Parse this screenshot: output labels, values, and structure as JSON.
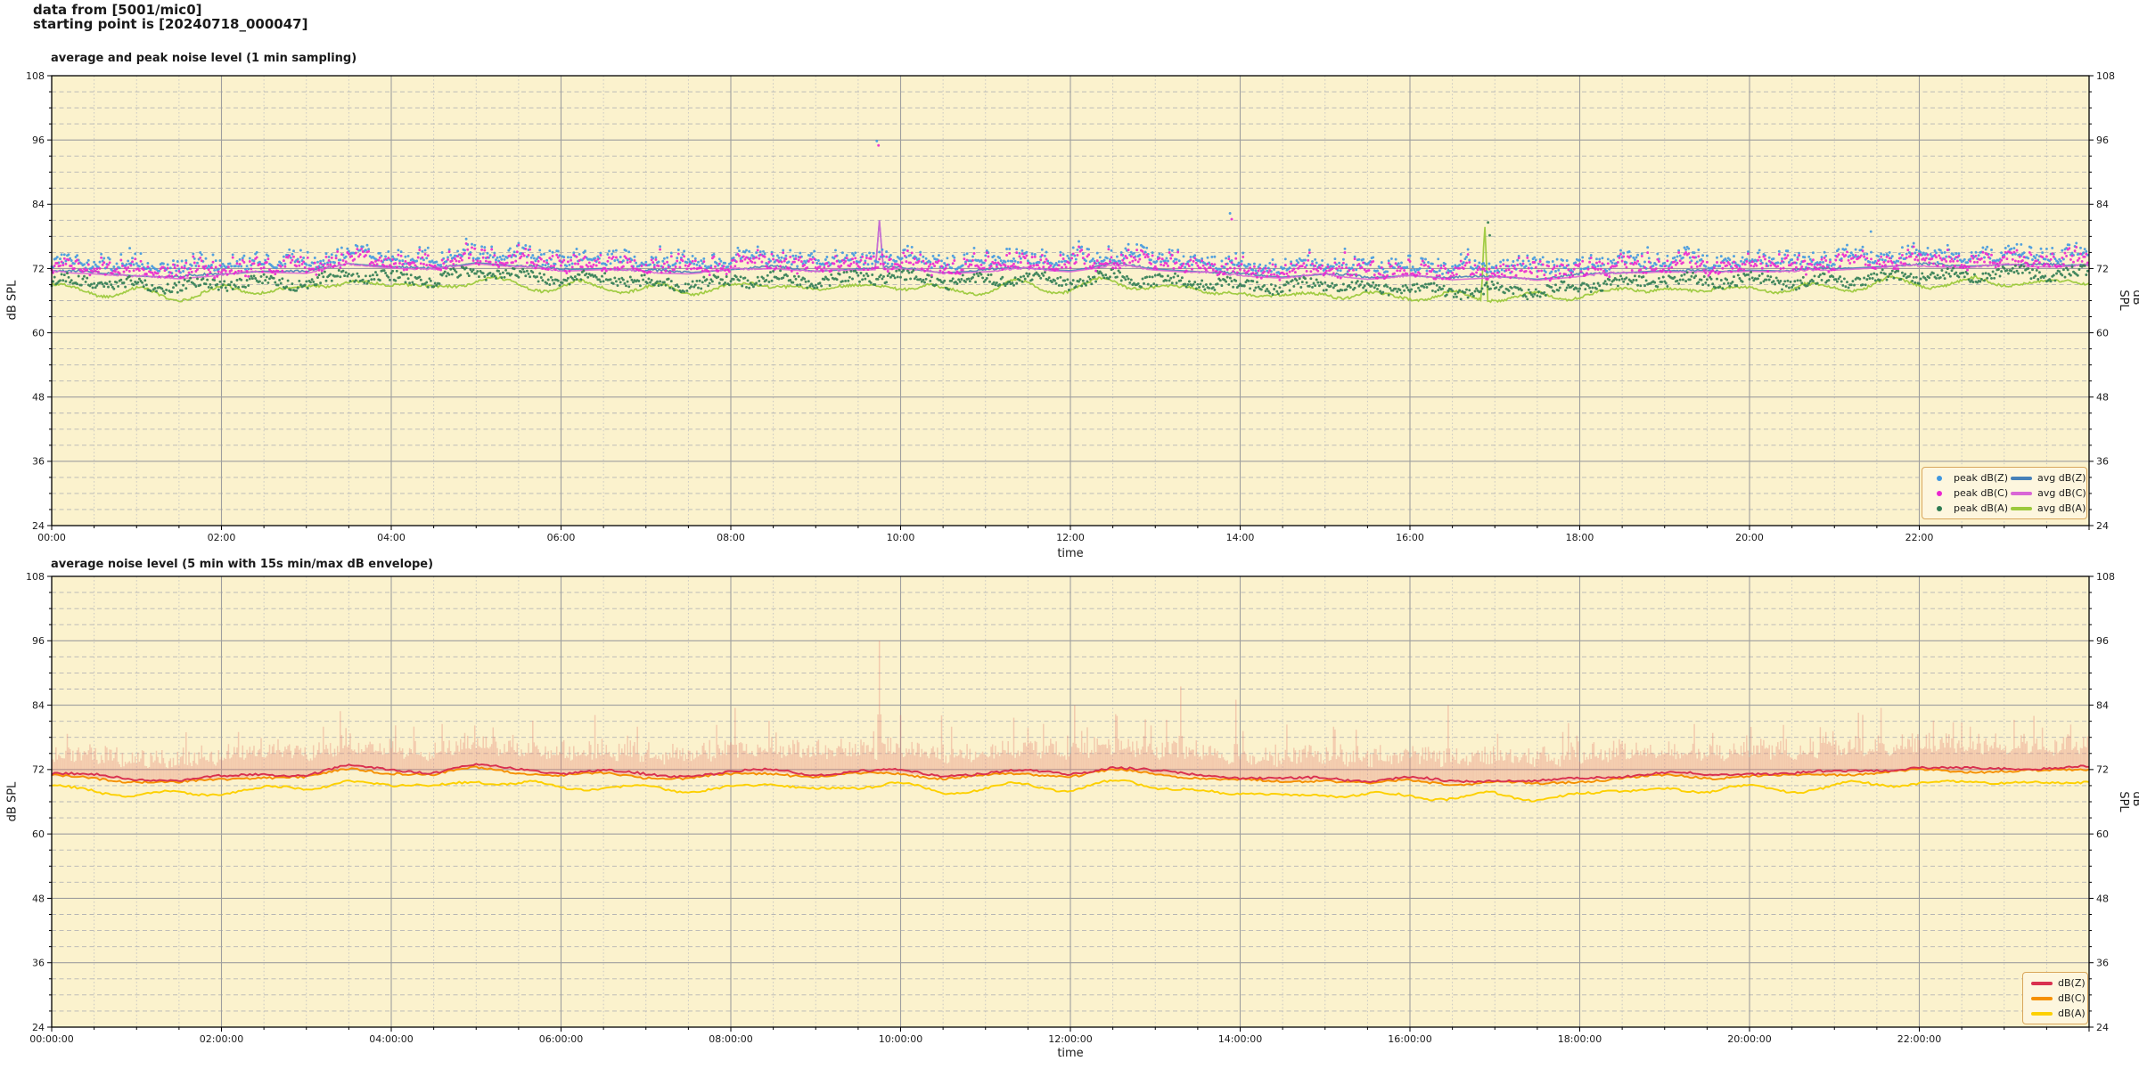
{
  "header": {
    "line1": "data from [5001/mic0]",
    "line2": "starting point is [20240718_000047]"
  },
  "seed": 47,
  "colors": {
    "figure_bg": "#ffffff",
    "plot_bg": "#fbf2cd",
    "grid_major": "#9e9e9e",
    "grid_minor_h": "#b5b5b5",
    "grid_minor_v": "#c2c2c2",
    "axis": "#000000",
    "text": "#1a1a1a",
    "peak_dBZ": "#3f97e0",
    "peak_dBC": "#ea25d0",
    "peak_dBA": "#2e7b52",
    "avg_dBZ": "#4680b8",
    "avg_dBC": "#d966d6",
    "avg_dBA": "#9cc93c",
    "dBZ": "#d9304f",
    "dBC": "#f59000",
    "dBA": "#fdd000",
    "envelope": "#e4796d",
    "legend_bg": "#fdf6de",
    "legend_border": "#d9a75c"
  },
  "chart_data": [
    {
      "type": "scatter",
      "title": "average and peak noise level (1 min sampling)",
      "xlabel": "time",
      "ylabel_left": "dB SPL",
      "ylabel_right": "dB SPL",
      "ylim": [
        24,
        108
      ],
      "xlim_hours": [
        0,
        24
      ],
      "y_ticks": [
        24,
        36,
        48,
        60,
        72,
        84,
        96,
        108
      ],
      "y_minor_step": 3,
      "x_tick_hours": [
        0,
        2,
        4,
        6,
        8,
        10,
        12,
        14,
        16,
        18,
        20,
        22
      ],
      "x_tick_labels": [
        "00:00",
        "02:00",
        "04:00",
        "06:00",
        "08:00",
        "10:00",
        "12:00",
        "14:00",
        "16:00",
        "18:00",
        "20:00",
        "22:00"
      ],
      "x_minor_minutes": 30,
      "grid": true,
      "legend_position": "lower right",
      "legend_columns": 2,
      "legend_entries": [
        {
          "label": "peak dB(Z)",
          "marker": "dot",
          "color_key": "peak_dBZ"
        },
        {
          "label": "peak dB(C)",
          "marker": "dot",
          "color_key": "peak_dBC"
        },
        {
          "label": "peak dB(A)",
          "marker": "dot",
          "color_key": "peak_dBA"
        },
        {
          "label": "avg dB(Z)",
          "marker": "line",
          "color_key": "avg_dBZ"
        },
        {
          "label": "avg dB(C)",
          "marker": "line",
          "color_key": "avg_dBC"
        },
        {
          "label": "avg dB(A)",
          "marker": "line",
          "color_key": "avg_dBA"
        }
      ],
      "sampling_minutes": 1,
      "anchor_step_hours": 0.5,
      "series": [
        {
          "name": "avg dB(Z)",
          "style": "line",
          "color_key": "avg_dBZ",
          "anchors_db": [
            71.5,
            71.2,
            70.6,
            70.3,
            70.9,
            71.5,
            71.3,
            72.9,
            72.3,
            71.8,
            73.1,
            72.4,
            71.7,
            72.0,
            71.4,
            71.2,
            71.8,
            72.2,
            71.5,
            71.9,
            72.1,
            71.2,
            71.6,
            72.0,
            71.6,
            72.7,
            71.9,
            71.4,
            70.8,
            70.4,
            70.9,
            70.2,
            70.7,
            70.1,
            70.5,
            70.0,
            70.7,
            71.2,
            71.6,
            71.3,
            71.7,
            71.5,
            71.9,
            72.3,
            72.6,
            72.4,
            72.7,
            72.5,
            72.7
          ]
        },
        {
          "name": "avg dB(C)",
          "style": "line",
          "color_key": "avg_dBC",
          "anchors_db": [
            71.3,
            71.0,
            70.4,
            70.1,
            70.7,
            71.3,
            71.1,
            72.7,
            72.1,
            71.6,
            72.9,
            72.2,
            71.5,
            71.8,
            71.2,
            71.0,
            71.6,
            72.0,
            71.3,
            71.7,
            71.9,
            71.0,
            71.4,
            71.8,
            71.4,
            72.5,
            71.7,
            71.2,
            70.6,
            70.2,
            70.7,
            70.0,
            70.5,
            69.9,
            70.3,
            69.8,
            70.5,
            71.0,
            71.4,
            71.1,
            71.5,
            71.3,
            71.7,
            72.1,
            72.4,
            72.2,
            72.5,
            72.3,
            72.5
          ]
        },
        {
          "name": "avg dB(A)",
          "style": "line",
          "color_key": "avg_dBA",
          "anchors_db": [
            69.3,
            68.9,
            68.3,
            68.0,
            68.7,
            69.3,
            69.1,
            70.7,
            70.0,
            69.5,
            70.9,
            70.1,
            69.4,
            69.8,
            69.1,
            68.9,
            69.6,
            70.0,
            69.2,
            69.7,
            69.9,
            68.8,
            69.3,
            69.8,
            69.3,
            70.5,
            69.6,
            69.0,
            68.3,
            67.8,
            68.5,
            67.6,
            68.2,
            67.5,
            68.0,
            67.4,
            68.2,
            68.8,
            69.3,
            68.9,
            69.4,
            69.1,
            69.6,
            70.1,
            70.5,
            70.2,
            70.6,
            70.3,
            70.5
          ]
        },
        {
          "name": "peak dB(Z)",
          "style": "scatter",
          "color_key": "peak_dBZ",
          "band_db": [
            70.5,
            77.5
          ]
        },
        {
          "name": "peak dB(C)",
          "style": "scatter",
          "color_key": "peak_dBC",
          "band_db": [
            69.8,
            76.5
          ]
        },
        {
          "name": "peak dB(A)",
          "style": "scatter",
          "color_key": "peak_dBA",
          "band_db": [
            66.5,
            72.5
          ]
        }
      ],
      "events": [
        {
          "kind": "avg_spike",
          "series": [
            "avg dB(Z)",
            "avg dB(C)"
          ],
          "hour": 9.75,
          "peak_db": 81.0,
          "half_width_hours": 0.045
        },
        {
          "kind": "avg_spike",
          "series": [
            "avg dB(A)"
          ],
          "hour": 16.88,
          "peak_db": 81.0,
          "half_width_hours": 0.035
        }
      ],
      "outlier_points": [
        {
          "hour": 9.72,
          "db": 95.8,
          "series": "peak dB(Z)"
        },
        {
          "hour": 9.74,
          "db": 95.0,
          "series": "peak dB(C)"
        },
        {
          "hour": 13.88,
          "db": 82.3,
          "series": "peak dB(Z)"
        },
        {
          "hour": 13.9,
          "db": 81.2,
          "series": "peak dB(C)"
        },
        {
          "hour": 16.92,
          "db": 80.6,
          "series": "peak dB(A)"
        },
        {
          "hour": 16.94,
          "db": 78.2,
          "series": "peak dB(A)"
        },
        {
          "hour": 0.92,
          "db": 75.8,
          "series": "peak dB(Z)"
        },
        {
          "hour": 21.43,
          "db": 78.9,
          "series": "peak dB(Z)"
        },
        {
          "hour": 23.2,
          "db": 76.5,
          "series": "peak dB(Z)"
        }
      ]
    },
    {
      "type": "line",
      "title": "average noise level (5 min with 15s min/max dB envelope)",
      "xlabel": "time",
      "ylabel_left": "dB SPL",
      "ylabel_right": "dB SPL",
      "ylim": [
        24,
        108
      ],
      "xlim_hours": [
        0,
        24
      ],
      "y_ticks": [
        24,
        36,
        48,
        60,
        72,
        84,
        96,
        108
      ],
      "y_minor_step": 3,
      "x_tick_hours": [
        0,
        2,
        4,
        6,
        8,
        10,
        12,
        14,
        16,
        18,
        20,
        22
      ],
      "x_tick_labels": [
        "00:00:00",
        "02:00:00",
        "04:00:00",
        "06:00:00",
        "08:00:00",
        "10:00:00",
        "12:00:00",
        "14:00:00",
        "16:00:00",
        "18:00:00",
        "20:00:00",
        "22:00:00"
      ],
      "x_minor_minutes": 30,
      "grid": true,
      "legend_position": "lower right",
      "legend_columns": 1,
      "legend_entries": [
        {
          "label": "dB(Z)",
          "marker": "line",
          "color_key": "dBZ"
        },
        {
          "label": "dB(C)",
          "marker": "line",
          "color_key": "dBC"
        },
        {
          "label": "dB(A)",
          "marker": "line",
          "color_key": "dBA"
        }
      ],
      "sampling_minutes": 5,
      "anchor_step_hours": 0.5,
      "series": [
        {
          "name": "dB(Z)",
          "style": "line",
          "color_key": "dBZ",
          "anchors_db": [
            71.2,
            70.9,
            70.3,
            70.0,
            70.6,
            71.2,
            71.0,
            72.6,
            72.0,
            71.5,
            72.8,
            72.1,
            71.4,
            71.7,
            71.1,
            70.9,
            71.5,
            71.9,
            71.2,
            71.6,
            71.8,
            70.9,
            71.3,
            71.7,
            71.3,
            72.4,
            71.6,
            71.1,
            70.5,
            70.1,
            70.6,
            69.9,
            70.4,
            69.8,
            70.2,
            69.7,
            70.4,
            70.9,
            71.3,
            71.0,
            71.4,
            71.2,
            71.6,
            72.0,
            72.3,
            72.1,
            72.4,
            72.2,
            72.4
          ]
        },
        {
          "name": "dB(C)",
          "style": "line",
          "color_key": "dBC",
          "anchors_db": [
            70.7,
            70.4,
            69.8,
            69.5,
            70.1,
            70.7,
            70.5,
            72.1,
            71.5,
            71.0,
            72.3,
            71.6,
            70.9,
            71.2,
            70.6,
            70.4,
            71.0,
            71.4,
            70.7,
            71.1,
            71.3,
            70.4,
            70.8,
            71.2,
            70.8,
            71.9,
            71.1,
            70.6,
            70.0,
            69.6,
            70.1,
            69.4,
            69.9,
            69.3,
            69.7,
            69.2,
            69.9,
            70.4,
            70.8,
            70.5,
            70.9,
            70.7,
            71.1,
            71.5,
            71.8,
            71.6,
            71.9,
            71.7,
            71.9
          ]
        },
        {
          "name": "dB(A)",
          "style": "line",
          "color_key": "dBA",
          "anchors_db": [
            69.0,
            68.6,
            68.0,
            67.7,
            68.4,
            69.0,
            68.8,
            70.4,
            69.7,
            69.2,
            70.6,
            69.8,
            69.1,
            69.5,
            68.8,
            68.6,
            69.3,
            69.7,
            68.9,
            69.4,
            69.6,
            68.5,
            69.0,
            69.5,
            69.0,
            70.2,
            69.3,
            68.7,
            68.0,
            67.5,
            68.2,
            67.3,
            67.9,
            67.2,
            67.7,
            67.1,
            67.9,
            68.5,
            69.0,
            68.6,
            69.1,
            68.8,
            69.3,
            69.8,
            70.2,
            69.9,
            70.3,
            70.0,
            70.2
          ]
        },
        {
          "name": "15s max envelope",
          "style": "envelope",
          "color_key": "envelope",
          "anchors_db": [
            75.2,
            74.8,
            74.2,
            74.0,
            74.9,
            75.8,
            75.4,
            77.0,
            76.2,
            75.6,
            77.2,
            76.2,
            75.6,
            75.8,
            75.2,
            75.0,
            75.9,
            76.1,
            75.5,
            75.9,
            76.0,
            75.1,
            75.6,
            76.0,
            75.8,
            76.9,
            76.0,
            75.5,
            74.9,
            74.5,
            75.0,
            74.4,
            74.9,
            74.3,
            74.8,
            74.3,
            75.0,
            75.5,
            75.9,
            75.6,
            76.0,
            75.7,
            76.1,
            76.5,
            76.9,
            76.6,
            77.0,
            76.7,
            76.9
          ]
        }
      ],
      "envelope_spikes": [
        [
          2.2,
          79.0
        ],
        [
          4.6,
          80.5
        ],
        [
          6.9,
          80.0
        ],
        [
          8.05,
          83.5
        ],
        [
          9.75,
          96.0
        ],
        [
          10.6,
          80.0
        ],
        [
          12.05,
          84.0
        ],
        [
          12.55,
          82.0
        ],
        [
          13.3,
          87.5
        ],
        [
          13.95,
          85.0
        ],
        [
          15.1,
          80.0
        ],
        [
          16.45,
          84.0
        ],
        [
          17.8,
          79.0
        ],
        [
          19.35,
          80.5
        ],
        [
          20.9,
          79.0
        ],
        [
          21.55,
          83.5
        ],
        [
          22.6,
          80.0
        ],
        [
          23.35,
          82.0
        ]
      ]
    }
  ]
}
